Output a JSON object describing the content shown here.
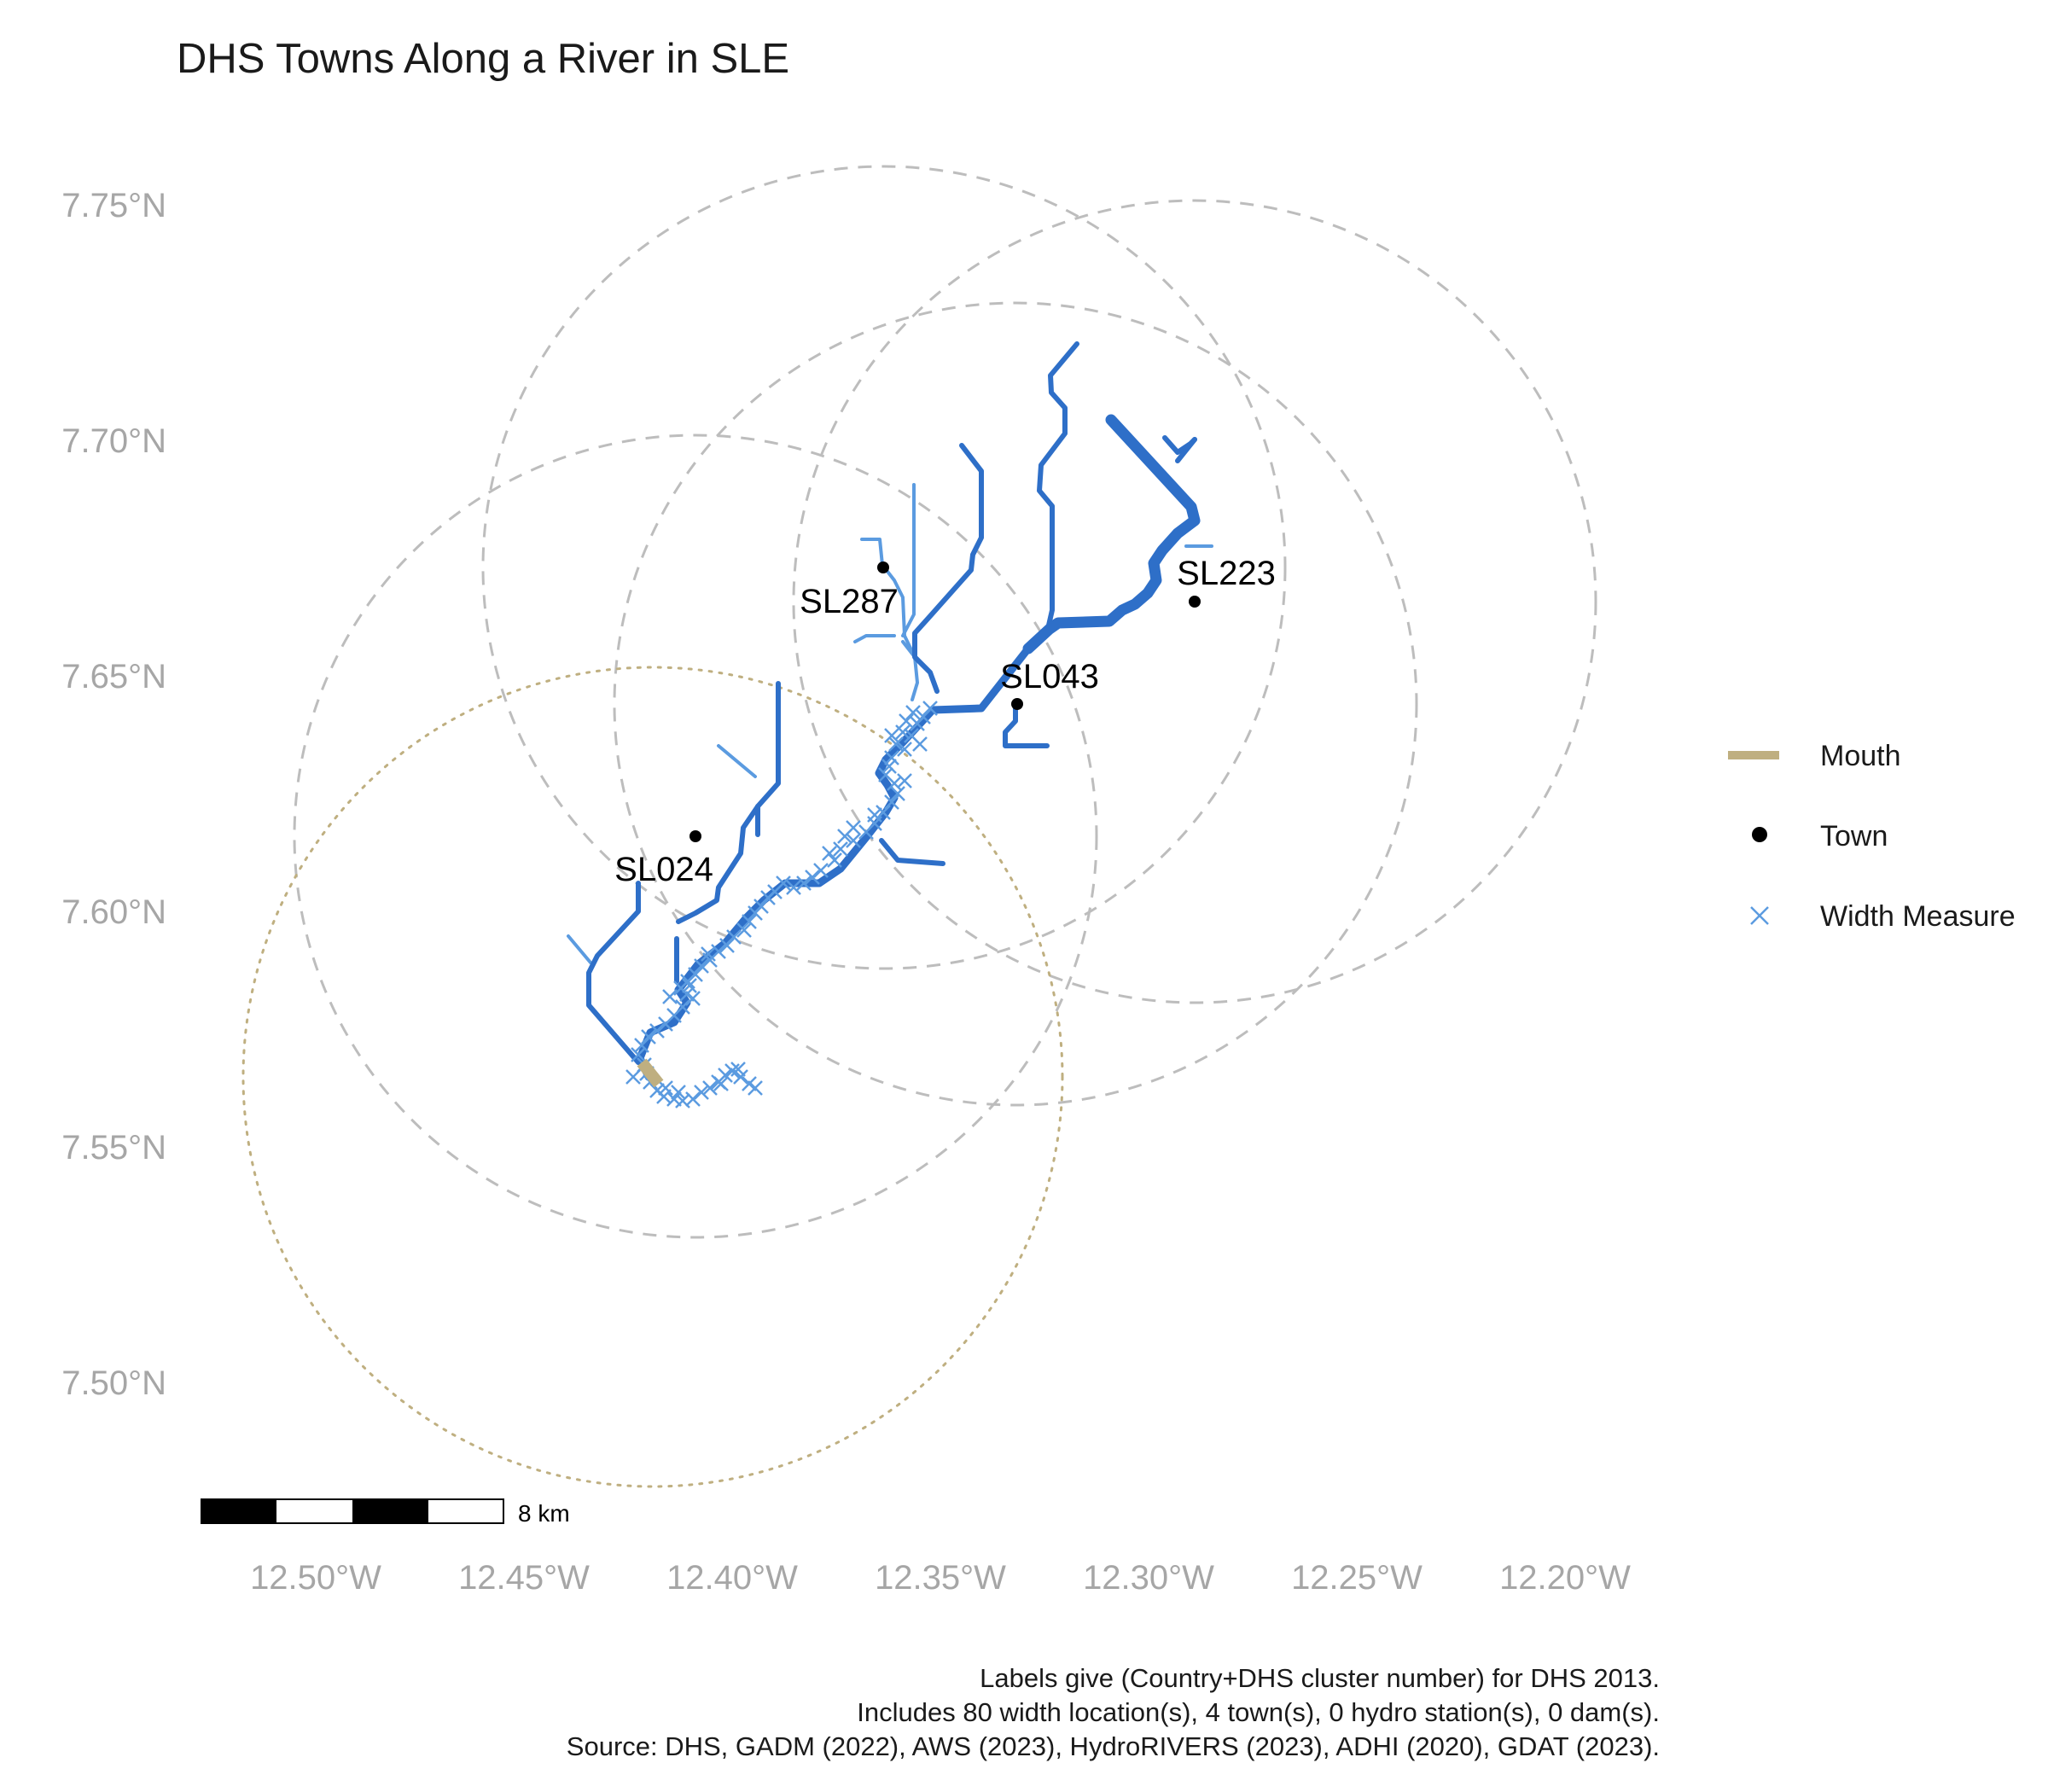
{
  "title": "DHS Towns Along a River in SLE",
  "axes": {
    "y_ticks": [
      "7.75°N",
      "7.70°N",
      "7.65°N",
      "7.60°N",
      "7.55°N",
      "7.50°N"
    ],
    "x_ticks": [
      "12.50°W",
      "12.45°W",
      "12.40°W",
      "12.35°W",
      "12.30°W",
      "12.25°W",
      "12.20°W"
    ]
  },
  "towns": [
    {
      "label": "SL287",
      "lon": -12.363,
      "lat": 7.672
    },
    {
      "label": "SL223",
      "lon": -12.289,
      "lat": 7.665
    },
    {
      "label": "SL043",
      "lon": -12.332,
      "lat": 7.643
    },
    {
      "label": "SL024",
      "lon": -12.407,
      "lat": 7.615
    }
  ],
  "legend": {
    "items": [
      {
        "label": "Mouth",
        "color": "#BFAF80",
        "symbol": "line"
      },
      {
        "label": "Town",
        "color": "#000000",
        "symbol": "dot"
      },
      {
        "label": "Width Measure",
        "color": "#5B9BE0",
        "symbol": "cross"
      }
    ]
  },
  "scale_bar": {
    "label": "8 km"
  },
  "caption": [
    "Labels give (Country+DHS cluster number) for DHS 2013.",
    "Includes 80 width location(s), 4 town(s), 0 hydro station(s), 0 dam(s).",
    "Source: DHS, GADM (2022), AWS (2023), HydroRIVERS (2023), ADHI (2020), GDAT (2023)."
  ],
  "colors": {
    "river": "#2E6FC8",
    "river_light": "#5B9BE0",
    "mouth": "#BFAF80",
    "buffer": "#BDBDBD",
    "axis_text": "#A6A6A6"
  }
}
